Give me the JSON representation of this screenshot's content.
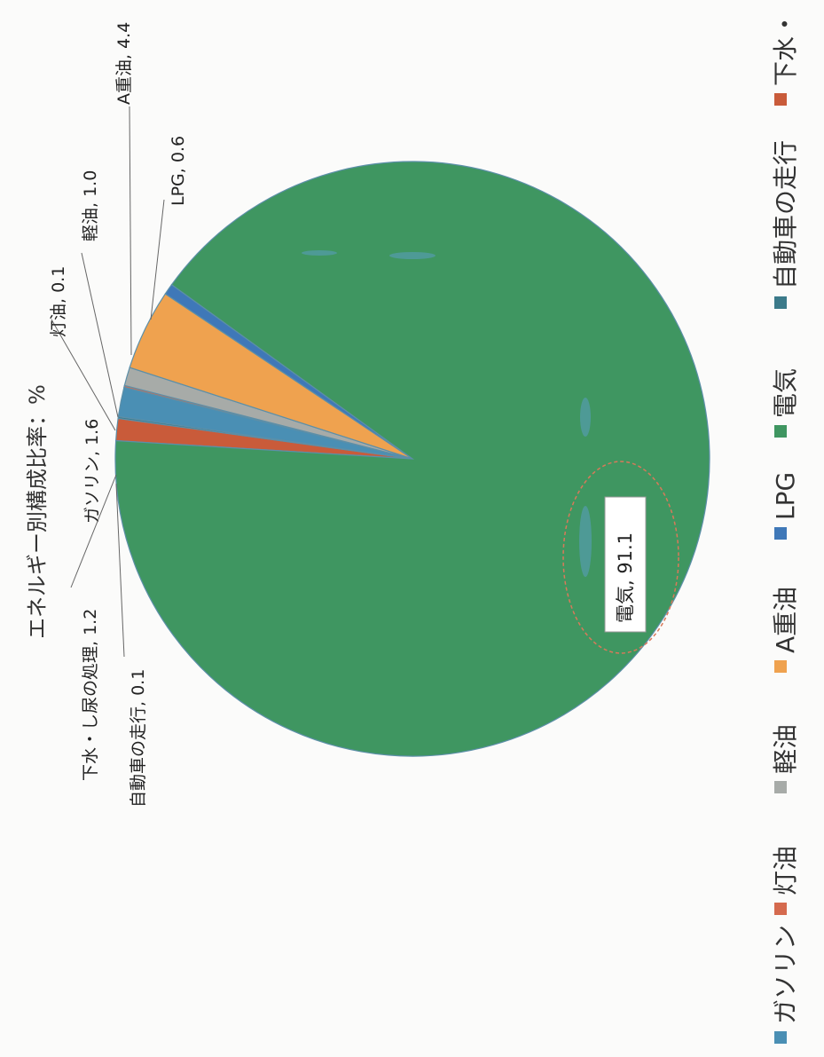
{
  "chart_data": {
    "type": "pie",
    "title": "エネルギー別構成比率：%",
    "series": [
      {
        "name": "ガソリン",
        "value": 1.6,
        "label": "ガソリン, 1.6",
        "color": "#4a8fb4"
      },
      {
        "name": "灯油",
        "value": 0.1,
        "label": "灯油, 0.1",
        "color": "#d56a4e"
      },
      {
        "name": "軽油",
        "value": 1.0,
        "label": "軽油, 1.0",
        "color": "#a7aba8"
      },
      {
        "name": "A重油",
        "value": 4.4,
        "label": "A重油, 4.4",
        "color": "#efa24f"
      },
      {
        "name": "LPG",
        "value": 0.6,
        "label": "LPG, 0.6",
        "color": "#3f78b8"
      },
      {
        "name": "電気",
        "value": 91.1,
        "label": "電気, 91.1",
        "color": "#3f9661"
      },
      {
        "name": "自動車の走行",
        "value": 0.1,
        "label": "自動車の走行, 0.1",
        "color": "#3b7a8a"
      },
      {
        "name": "下水・し尿の処理",
        "value": 1.2,
        "label": "下水・し尿の処理, 1.2",
        "color": "#c95b3a"
      }
    ],
    "legend": {
      "position": "bottom",
      "items": [
        "ガソリン",
        "灯油",
        "軽油",
        "A重油",
        "LPG",
        "電気",
        "自動車の走行",
        "下水・"
      ]
    }
  }
}
